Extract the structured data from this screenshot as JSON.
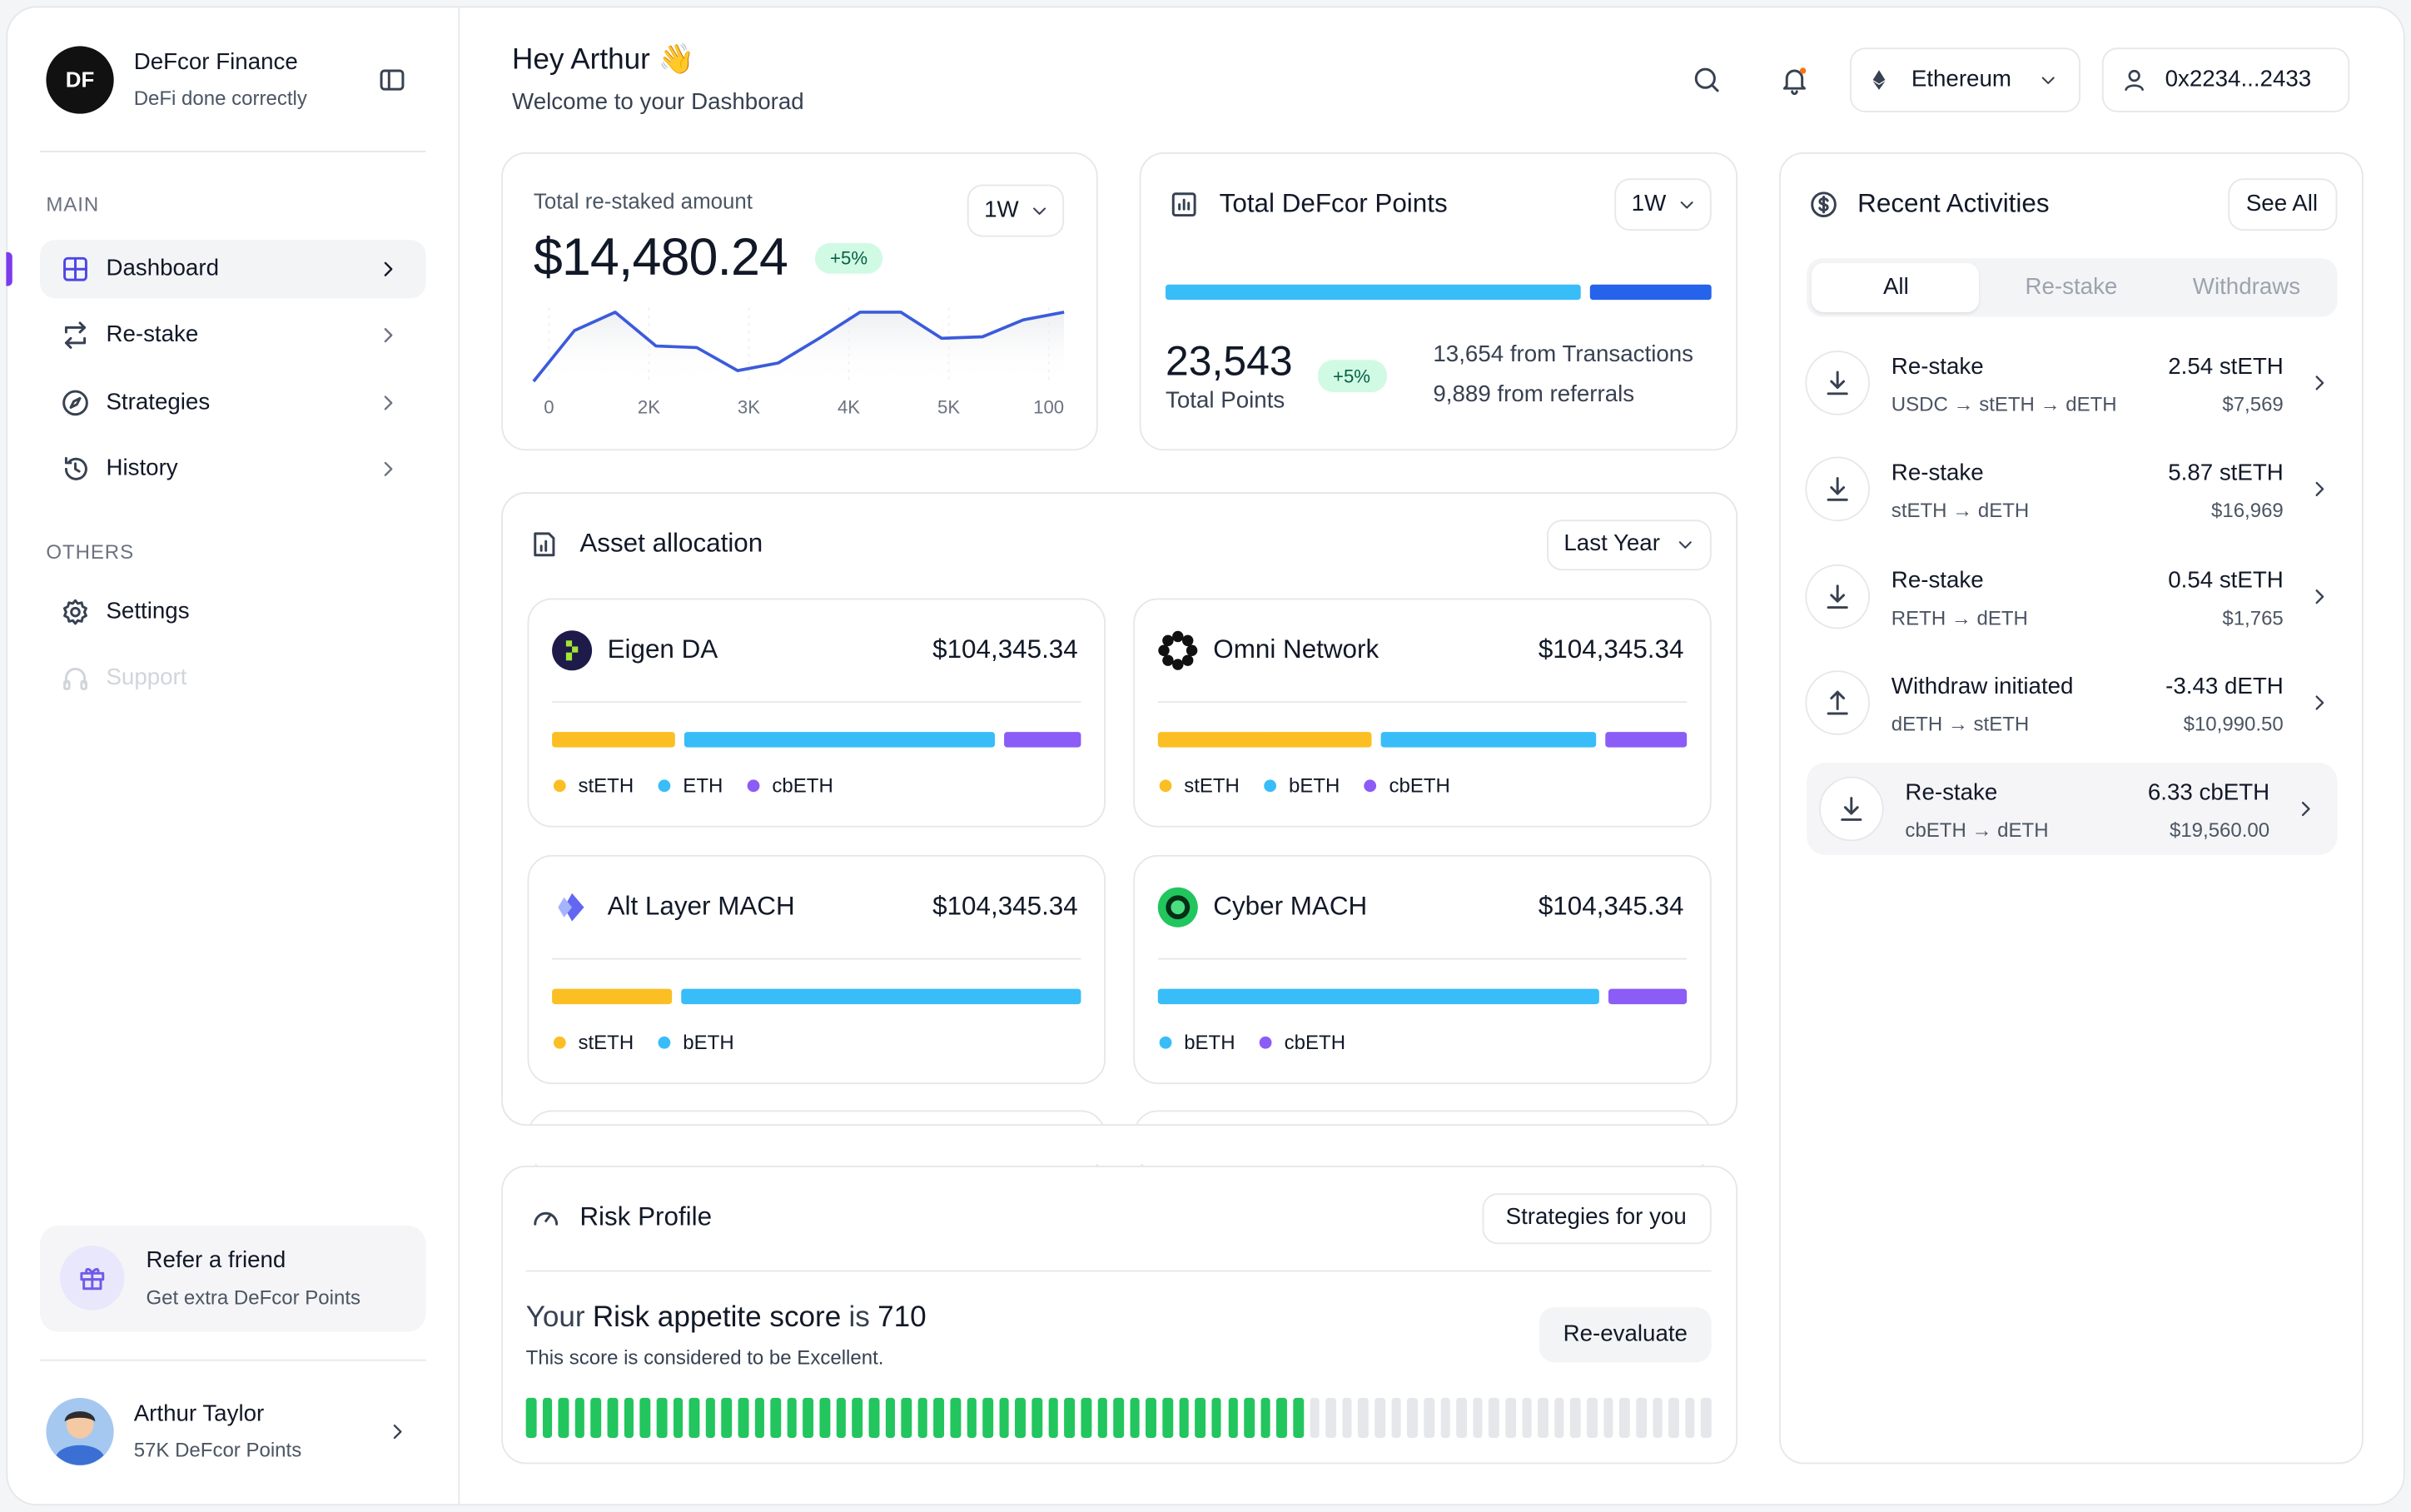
{
  "sidebar": {
    "brand": {
      "logo": "DF",
      "name": "DeFcor Finance",
      "tagline": "DeFi done correctly"
    },
    "sections": [
      {
        "title": "MAIN",
        "items": [
          "Dashboard",
          "Re-stake",
          "Strategies",
          "History"
        ]
      },
      {
        "title": "OTHERS",
        "items": [
          "Settings",
          "Support"
        ]
      }
    ],
    "refer": {
      "title": "Refer a friend",
      "subtitle": "Get extra DeFcor Points"
    },
    "user": {
      "name": "Arthur Taylor",
      "points": "57K DeFcor Points"
    }
  },
  "header": {
    "greeting": "Hey Arthur 👋",
    "subtitle": "Welcome to your Dashborad",
    "network": "Ethereum",
    "wallet": "0x2234...2433"
  },
  "restaked": {
    "label": "Total re-staked amount",
    "period": "1W",
    "amount": "$14,480.24",
    "change": "+5%",
    "chart": {
      "type": "line",
      "x_labels": [
        "0",
        "2K",
        "3K",
        "4K",
        "5K",
        "100"
      ],
      "values": [
        4,
        70,
        94,
        50,
        48,
        18,
        28,
        60,
        94,
        94,
        60,
        62,
        84,
        94
      ],
      "ylim": [
        0,
        100
      ],
      "color": "#3b5bdb"
    }
  },
  "points": {
    "title": "Total DeFcor Points",
    "period": "1W",
    "total": "23,543",
    "total_label": "Total Points",
    "change": "+5%",
    "transactions": "13,654 from Transactions",
    "referrals": "9,889 from referrals"
  },
  "allocation": {
    "title": "Asset allocation",
    "period": "Last Year",
    "assets": [
      {
        "name": "Eigen DA",
        "amount": "$104,345.34",
        "series": [
          {
            "name": "stETH",
            "color": "#fbbf24",
            "value": 24
          },
          {
            "name": "ETH",
            "color": "#38bdf8",
            "value": 61
          },
          {
            "name": "cbETH",
            "color": "#8b5cf6",
            "value": 15
          }
        ]
      },
      {
        "name": "Omni Network",
        "amount": "$104,345.34",
        "series": [
          {
            "name": "stETH",
            "color": "#fbbf24",
            "value": 42
          },
          {
            "name": "bETH",
            "color": "#38bdf8",
            "value": 42
          },
          {
            "name": "cbETH",
            "color": "#8b5cf6",
            "value": 16
          }
        ]
      },
      {
        "name": "Alt Layer MACH",
        "amount": "$104,345.34",
        "series": [
          {
            "name": "stETH",
            "color": "#fbbf24",
            "value": 23
          },
          {
            "name": "bETH",
            "color": "#38bdf8",
            "value": 77
          }
        ]
      },
      {
        "name": "Cyber MACH",
        "amount": "$104,345.34",
        "series": [
          {
            "name": "bETH",
            "color": "#38bdf8",
            "value": 85
          },
          {
            "name": "cbETH",
            "color": "#8b5cf6",
            "value": 15
          }
        ]
      }
    ]
  },
  "risk": {
    "title": "Risk Profile",
    "button": "Strategies for you",
    "prefix": "Your",
    "label": "Risk appetite score",
    "mid": "is",
    "score": "710",
    "note": "This score is considered to be Excellent.",
    "action": "Re-evaluate"
  },
  "activities": {
    "title": "Recent Activities",
    "see_all": "See All",
    "tabs": [
      "All",
      "Re-stake",
      "Withdraws"
    ],
    "items": [
      {
        "title": "Re-stake",
        "route": "USDC → stETH → dETH",
        "amount": "2.54 stETH",
        "value": "$7,569"
      },
      {
        "title": "Re-stake",
        "route": "stETH → dETH",
        "amount": "5.87 stETH",
        "value": "$16,969"
      },
      {
        "title": "Re-stake",
        "route": "RETH → dETH",
        "amount": "0.54 stETH",
        "value": "$1,765"
      },
      {
        "title": "Withdraw initiated",
        "route": "dETH → stETH",
        "amount": "-3.43 dETH",
        "value": "$10,990.50"
      },
      {
        "title": "Re-stake",
        "route": "cbETH → dETH",
        "amount": "6.33 cbETH",
        "value": "$19,560.00"
      }
    ]
  }
}
